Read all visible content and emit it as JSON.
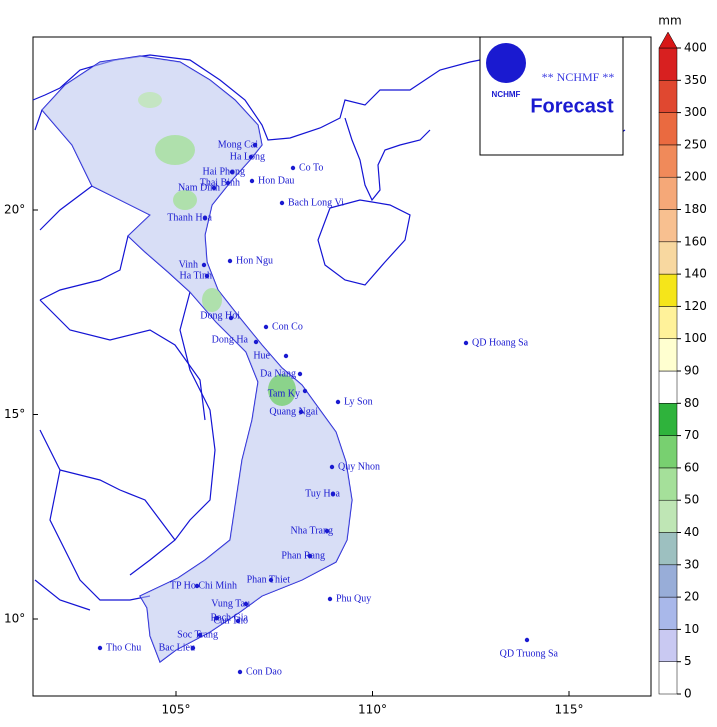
{
  "logo": {
    "short": "NCHMF",
    "banner": "** NCHMF **",
    "product": "Forecast"
  },
  "axes": {
    "xticks": [
      {
        "value": 105,
        "label": "105°"
      },
      {
        "value": 110,
        "label": "110°"
      },
      {
        "value": 115,
        "label": "115°"
      }
    ],
    "yticks": [
      {
        "value": 10,
        "label": "10°"
      },
      {
        "value": 15,
        "label": "15°"
      },
      {
        "value": 20,
        "label": "20°"
      }
    ]
  },
  "colorbar": {
    "unit": "mm",
    "levels": [
      0,
      5,
      10,
      20,
      30,
      40,
      50,
      60,
      70,
      80,
      90,
      100,
      120,
      140,
      160,
      180,
      200,
      250,
      300,
      350,
      400
    ],
    "colors": [
      "#ffffff",
      "#c9c9f2",
      "#a9b8ea",
      "#98add8",
      "#9dc0c0",
      "#bfe6b5",
      "#a5e09a",
      "#78d070",
      "#2fb33c",
      "#ffffff",
      "#ffffd0",
      "#fff29a",
      "#f5e51a",
      "#f8d8a0",
      "#f8c090",
      "#f5a878",
      "#f08a5a",
      "#ea6a40",
      "#e04830",
      "#d82020"
    ],
    "top_color": "#d81818"
  },
  "places": [
    "Mong Cai",
    "Ha Long",
    "Co To",
    "Hai Phong",
    "Thai Binh",
    "Hon Dau",
    "Nam Dinh",
    "Bach Long Vi",
    "Thanh Hoa",
    "Vinh",
    "Hon Ngu",
    "Ha Tinh",
    "Dong Hoi",
    "Con Co",
    "Dong Ha",
    "Hue",
    "Da Nang",
    "Tam Ky",
    "Quang Ngai",
    "Ly Son",
    "QD Hoang Sa",
    "Quy Nhon",
    "Tuy Hoa",
    "Nha Trang",
    "Phan Rang",
    "Phan Thiet",
    "TP Ho Chi Minh",
    "Vung Tau",
    "Phu Quy",
    "Rach Gia",
    "Can Tho",
    "Soc Trang",
    "Bac Lieu",
    "Tho Chu",
    "Con Dao",
    "QD Truong Sa"
  ]
}
